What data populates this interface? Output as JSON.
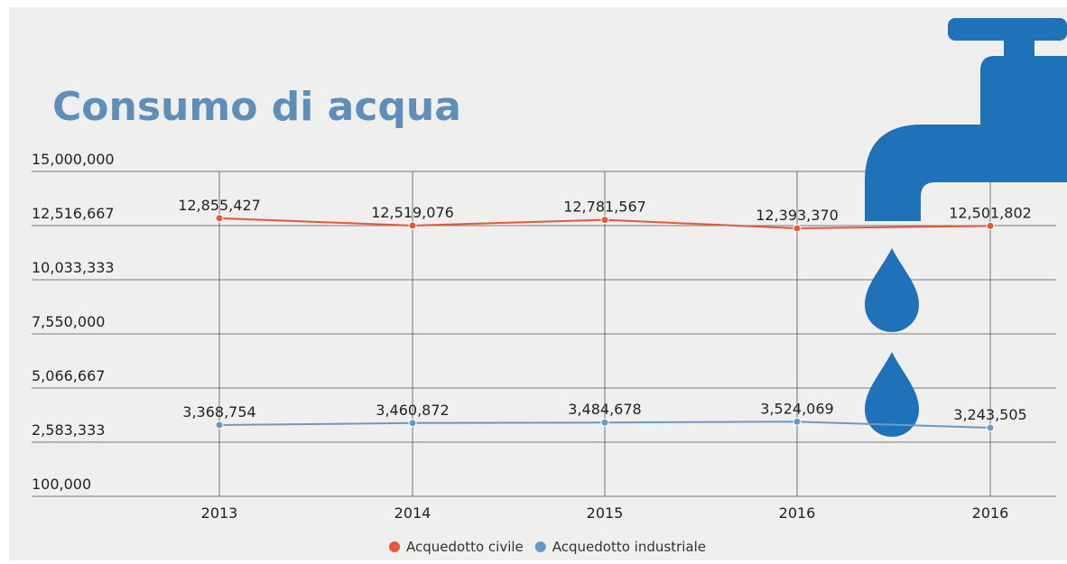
{
  "chart_data": {
    "type": "line",
    "title": "Consumo di acqua",
    "categories": [
      "2013",
      "2014",
      "2015",
      "2016",
      "2016"
    ],
    "series": [
      {
        "name": "Acquedotto civile",
        "color": "#e35a36",
        "values": [
          12855427,
          12519076,
          12781567,
          12393370,
          12501802
        ],
        "value_labels": [
          "12,855,427",
          "12,519,076",
          "12,781,567",
          "12,393,370",
          "12,501,802"
        ]
      },
      {
        "name": "Acquedotto industriale",
        "color": "#6a9ac2",
        "values": [
          3368754,
          3460872,
          3484678,
          3524069,
          3243505
        ],
        "value_labels": [
          "3,368,754",
          "3,460,872",
          "3,484,678",
          "3,524,069",
          "3,243,505"
        ]
      }
    ],
    "ylim": [
      100000,
      15000000
    ],
    "yticks": [
      {
        "value": 100000,
        "label": "100,000"
      },
      {
        "value": 2583333,
        "label": "2,583,333"
      },
      {
        "value": 5066667,
        "label": "5,066,667"
      },
      {
        "value": 7550000,
        "label": "7,550,000"
      },
      {
        "value": 10033333,
        "label": "10,033,333"
      },
      {
        "value": 12516667,
        "label": "12,516,667"
      },
      {
        "value": 15000000,
        "label": "15,000,000"
      }
    ],
    "grid": true,
    "legend": "bottom"
  }
}
